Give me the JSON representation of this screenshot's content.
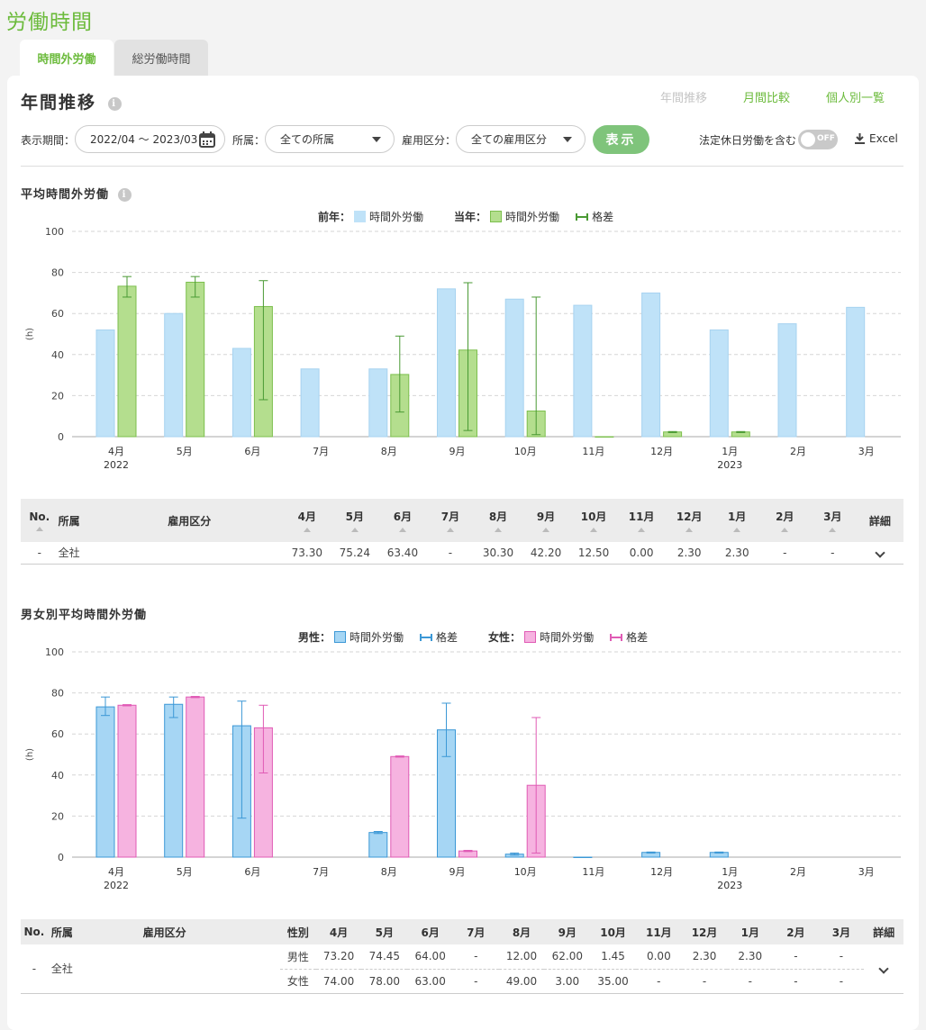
{
  "page": {
    "title": "労働時間"
  },
  "tabs": [
    {
      "label": "時間外労働",
      "active": true
    },
    {
      "label": "総労働時間",
      "active": false
    }
  ],
  "card": {
    "title": "年間推移",
    "info_icon": "info-icon",
    "nav": [
      {
        "label": "年間推移",
        "disabled": true
      },
      {
        "label": "月間比較"
      },
      {
        "label": "個人別一覧"
      }
    ]
  },
  "filters": {
    "period_label": "表示期間：",
    "period_value": "2022/04 ～ 2023/03",
    "affiliation_label": "所属：",
    "affiliation_value": "全ての所属",
    "employment_label": "雇用区分：",
    "employment_value": "全ての雇用区分",
    "show_button": "表示",
    "holiday_label": "法定休日労働を含む",
    "toggle_text": "OFF",
    "excel_label": "Excel"
  },
  "section1": {
    "title": "平均時間外労働",
    "legend": {
      "prev_label": "前年：",
      "prev_series": "時間外労働",
      "curr_label": "当年：",
      "curr_series": "時間外労働",
      "gap_label": "格差"
    }
  },
  "section2": {
    "title": "男女別平均時間外労働",
    "legend": {
      "male_label": "男性：",
      "male_series": "時間外労働",
      "male_gap": "格差",
      "female_label": "女性：",
      "female_series": "時間外労働",
      "female_gap": "格差"
    }
  },
  "chart_data": [
    {
      "type": "bar",
      "categories": [
        "4月",
        "5月",
        "6月",
        "7月",
        "8月",
        "9月",
        "10月",
        "11月",
        "12月",
        "1月",
        "2月",
        "3月"
      ],
      "year_labels": {
        "4月": "2022",
        "1月": "2023"
      },
      "ylabel": "(h)",
      "ylim": [
        0,
        100
      ],
      "yticks": [
        0,
        20,
        40,
        60,
        80,
        100
      ],
      "grid": true,
      "colors": {
        "prev": "#bfe2f8",
        "curr": "#b4de8e",
        "curr_border": "#7cbf4d",
        "gap": "#4a9a34"
      },
      "series": [
        {
          "name": "前年 時間外労働",
          "values": [
            52,
            60,
            43,
            33,
            33,
            72,
            67,
            64,
            70,
            52,
            55,
            63
          ]
        },
        {
          "name": "当年 時間外労働",
          "values": [
            73.3,
            75.24,
            63.4,
            null,
            30.3,
            42.2,
            12.5,
            0,
            2.3,
            2.3,
            null,
            null
          ]
        }
      ],
      "error_bars": [
        [
          68,
          78
        ],
        [
          68,
          78
        ],
        [
          18,
          76
        ],
        null,
        [
          12,
          49
        ],
        [
          3,
          75
        ],
        [
          1,
          68
        ],
        null,
        [
          2,
          2.5
        ],
        [
          2,
          2.5
        ],
        null,
        null
      ]
    },
    {
      "type": "bar",
      "categories": [
        "4月",
        "5月",
        "6月",
        "7月",
        "8月",
        "9月",
        "10月",
        "11月",
        "12月",
        "1月",
        "2月",
        "3月"
      ],
      "year_labels": {
        "4月": "2022",
        "1月": "2023"
      },
      "ylabel": "(h)",
      "ylim": [
        0,
        100
      ],
      "yticks": [
        0,
        20,
        40,
        60,
        80,
        100
      ],
      "grid": true,
      "colors": {
        "male": "#a6d6f4",
        "male_border": "#3c98d6",
        "female": "#f6b3e0",
        "female_border": "#e05bb5"
      },
      "series": [
        {
          "name": "男性 時間外労働",
          "values": [
            73.2,
            74.45,
            64.0,
            null,
            12.0,
            62.0,
            1.45,
            0,
            2.3,
            2.3,
            null,
            null
          ]
        },
        {
          "name": "女性 時間外労働",
          "values": [
            74.0,
            78.0,
            63.0,
            null,
            49.0,
            3.0,
            35.0,
            null,
            null,
            null,
            null,
            null
          ]
        }
      ],
      "male_error_bars": [
        [
          69,
          78
        ],
        [
          68,
          78
        ],
        [
          19,
          76
        ],
        null,
        [
          11.5,
          12.5
        ],
        [
          49,
          75
        ],
        [
          1,
          2
        ],
        null,
        [
          2,
          2.5
        ],
        [
          2,
          2.5
        ],
        null,
        null
      ],
      "female_error_bars": [
        [
          73.7,
          74.3
        ],
        [
          77.7,
          78.3
        ],
        [
          41,
          74
        ],
        null,
        [
          48.7,
          49.3
        ],
        [
          2.7,
          3.3
        ],
        [
          2,
          68
        ],
        null,
        null,
        null,
        null,
        null
      ]
    }
  ],
  "table1": {
    "headers": {
      "no": "No.",
      "affiliation": "所属",
      "employment": "雇用区分",
      "detail": "詳細"
    },
    "months": [
      "4月",
      "5月",
      "6月",
      "7月",
      "8月",
      "9月",
      "10月",
      "11月",
      "12月",
      "1月",
      "2月",
      "3月"
    ],
    "row": {
      "no": "-",
      "affiliation": "全社",
      "values": [
        "73.30",
        "75.24",
        "63.40",
        "-",
        "30.30",
        "42.20",
        "12.50",
        "0.00",
        "2.30",
        "2.30",
        "-",
        "-"
      ]
    }
  },
  "table2": {
    "headers": {
      "no": "No.",
      "affiliation": "所属",
      "employment": "雇用区分",
      "gender": "性別",
      "detail": "詳細"
    },
    "months": [
      "4月",
      "5月",
      "6月",
      "7月",
      "8月",
      "9月",
      "10月",
      "11月",
      "12月",
      "1月",
      "2月",
      "3月"
    ],
    "row": {
      "no": "-",
      "affiliation": "全社",
      "male": {
        "label": "男性",
        "values": [
          "73.20",
          "74.45",
          "64.00",
          "-",
          "12.00",
          "62.00",
          "1.45",
          "0.00",
          "2.30",
          "2.30",
          "-",
          "-"
        ]
      },
      "female": {
        "label": "女性",
        "values": [
          "74.00",
          "78.00",
          "63.00",
          "-",
          "49.00",
          "3.00",
          "35.00",
          "-",
          "-",
          "-",
          "-",
          "-"
        ]
      }
    }
  }
}
